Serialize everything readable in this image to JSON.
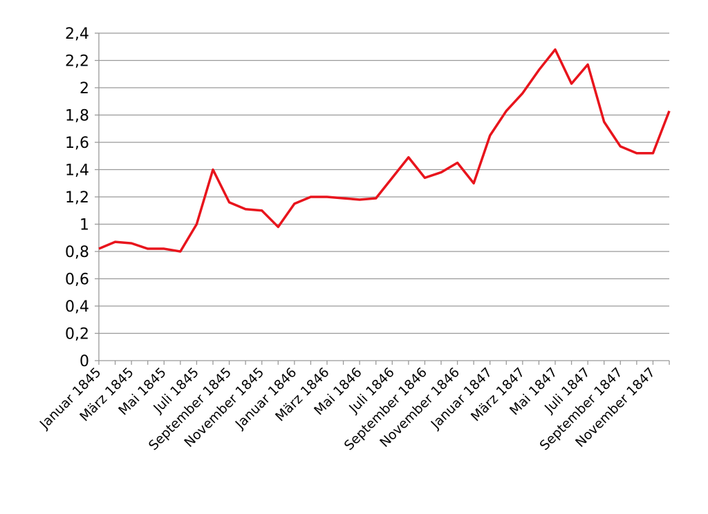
{
  "chart_data": {
    "type": "line",
    "categories": [
      "Januar 1845",
      null,
      "März 1845",
      null,
      "Mai 1845",
      null,
      "Juli 1845",
      null,
      "September 1845",
      null,
      "November 1845",
      null,
      "Januar 1846",
      null,
      "März 1846",
      null,
      "Mai 1846",
      null,
      "Juli 1846",
      null,
      "September 1846",
      null,
      "November 1846",
      null,
      "Januar 1847",
      null,
      "März 1847",
      null,
      "Mai 1847",
      null,
      "Juli 1847",
      null,
      "September 1847",
      null,
      "November 1847",
      null
    ],
    "series": [
      {
        "color": "#e8141c",
        "values": [
          0.82,
          0.87,
          0.86,
          0.82,
          0.82,
          0.8,
          1.0,
          1.4,
          1.16,
          1.11,
          1.1,
          0.98,
          1.15,
          1.2,
          1.2,
          1.19,
          1.18,
          1.19,
          1.34,
          1.49,
          1.34,
          1.38,
          1.45,
          1.3,
          1.65,
          1.83,
          1.96,
          2.13,
          2.28,
          2.03,
          2.17,
          1.75,
          1.57,
          1.52,
          1.52,
          1.83
        ]
      }
    ],
    "ylim": [
      0,
      2.4
    ],
    "yticks": [
      0,
      {
        "value": 0.2,
        "label": "0,2"
      },
      {
        "value": 0.4,
        "label": "0,4"
      },
      {
        "value": 0.6,
        "label": "0,6"
      },
      {
        "value": 0.8,
        "label": "0,8"
      },
      1,
      {
        "value": 1.2,
        "label": "1,2"
      },
      {
        "value": 1.4,
        "label": "1,4"
      },
      {
        "value": 1.6,
        "label": "1,6"
      },
      {
        "value": 1.8,
        "label": "1,8"
      },
      2,
      {
        "value": 2.2,
        "label": "2,2"
      },
      {
        "value": 2.4,
        "label": "2,4"
      }
    ],
    "grid": true
  }
}
